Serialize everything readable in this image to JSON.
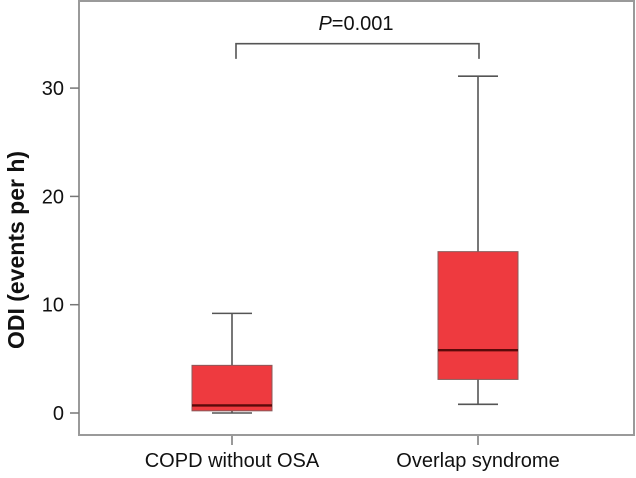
{
  "chart_data": {
    "type": "boxplot",
    "title": "",
    "xlabel": "",
    "ylabel": "ODI (events per h)",
    "ylim": [
      -2,
      37.5
    ],
    "yticks": [
      0,
      10,
      20,
      30
    ],
    "grid": false,
    "categories": [
      "COPD without OSA",
      "Overlap syndrome"
    ],
    "boxes": [
      {
        "name": "COPD without OSA",
        "whisker_low": 0.0,
        "q1": 0.2,
        "median": 0.7,
        "q3": 4.4,
        "whisker_high": 9.2
      },
      {
        "name": "Overlap syndrome",
        "whisker_low": 0.8,
        "q1": 3.1,
        "median": 5.8,
        "q3": 14.9,
        "whisker_high": 31.1
      }
    ],
    "box_color": "#ee3a3f",
    "median_color": "#5a0a0a",
    "annotation": {
      "italic_prefix": "P",
      "text": "=0.001",
      "between": [
        "COPD without OSA",
        "Overlap syndrome"
      ],
      "bracket_level": 34.1,
      "bracket_drop_to": 32.7
    }
  }
}
